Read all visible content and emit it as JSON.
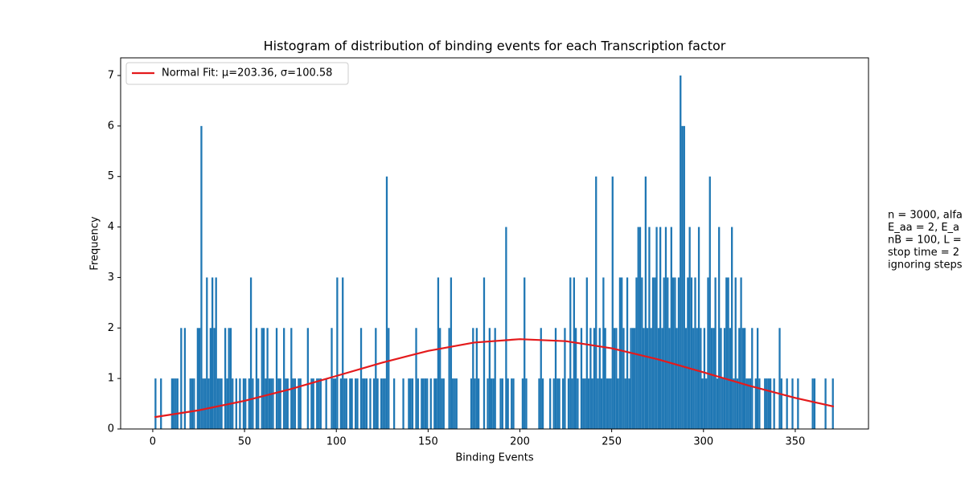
{
  "chart_data": {
    "type": "histogram",
    "title": "Histogram of distribution of binding events for each Transcription factor",
    "x_label": "Binding Events",
    "y_label": "Frequency",
    "color": "#1f77b4",
    "bins": [
      1,
      2,
      3,
      4,
      5,
      6,
      7,
      8,
      9,
      10,
      11,
      12,
      13,
      14,
      15,
      16,
      17,
      18,
      19,
      20,
      21,
      22,
      23,
      24,
      25,
      26,
      27,
      28,
      29,
      30,
      31,
      32,
      33,
      34,
      35,
      36,
      37,
      38,
      39,
      40,
      41,
      42,
      43,
      44,
      45,
      46,
      47,
      48,
      49,
      50,
      51,
      52,
      53,
      54,
      55,
      56,
      57,
      58,
      59,
      60,
      61,
      62,
      63,
      64,
      65,
      66,
      67,
      68,
      69,
      70,
      71,
      72,
      73,
      74,
      75,
      76,
      77,
      78,
      79,
      80,
      81,
      82,
      83,
      84,
      85,
      86,
      87,
      88,
      89,
      90,
      91,
      92,
      93,
      94,
      95,
      96,
      97,
      98,
      99,
      100,
      101,
      102,
      103,
      104,
      105,
      106,
      107,
      108,
      109,
      110,
      111,
      112,
      113,
      114,
      115,
      116,
      117,
      118,
      119,
      120,
      121,
      122,
      123,
      124,
      125,
      126,
      127,
      128,
      129,
      130,
      131,
      132,
      133,
      134,
      135,
      136,
      137,
      138,
      139,
      140,
      141,
      142,
      143,
      144,
      145,
      146,
      147,
      148,
      149,
      150,
      151,
      152,
      153,
      154,
      155,
      156,
      157,
      158,
      159,
      160,
      161,
      162,
      163,
      164,
      165,
      166,
      167,
      168,
      169,
      170,
      171,
      172,
      173,
      174,
      175,
      176,
      177,
      178,
      179,
      180,
      181,
      182,
      183,
      184,
      185,
      186,
      187,
      188,
      189,
      190,
      191,
      192,
      193,
      194,
      195,
      196,
      197,
      198,
      199,
      200,
      201,
      202,
      203,
      204,
      205,
      206,
      207,
      208,
      209,
      210,
      211,
      212,
      213,
      214,
      215,
      216,
      217,
      218,
      219,
      220,
      221,
      222,
      223,
      224,
      225,
      226,
      227,
      228,
      229,
      230,
      231,
      232,
      233,
      234,
      235,
      236,
      237,
      238,
      239,
      240,
      241,
      242,
      243,
      244,
      245,
      246,
      247,
      248,
      249,
      250,
      251,
      252,
      253,
      254,
      255,
      256,
      257,
      258,
      259,
      260,
      261,
      262,
      263,
      264,
      265,
      266,
      267,
      268,
      269,
      270,
      271,
      272,
      273,
      274,
      275,
      276,
      277,
      278,
      279,
      280,
      281,
      282,
      283,
      284,
      285,
      286,
      287,
      288,
      289,
      290,
      291,
      292,
      293,
      294,
      295,
      296,
      297,
      298,
      299,
      300,
      301,
      302,
      303,
      304,
      305,
      306,
      307,
      308,
      309,
      310,
      311,
      312,
      313,
      314,
      315,
      316,
      317,
      318,
      319,
      320,
      321,
      322,
      323,
      324,
      325,
      326,
      327,
      328,
      329,
      330,
      331,
      332,
      333,
      334,
      335,
      336,
      337,
      338,
      339,
      340,
      341,
      342,
      343,
      344,
      345,
      346,
      347,
      348,
      349,
      350,
      351,
      352,
      353,
      354,
      355,
      356,
      357,
      358,
      359,
      360,
      361,
      362,
      363,
      364,
      365,
      366,
      367,
      368,
      369,
      370,
      371
    ],
    "values": [
      1,
      0,
      0,
      1,
      0,
      0,
      0,
      0,
      0,
      1,
      1,
      1,
      1,
      0,
      2,
      0,
      2,
      0,
      0,
      1,
      1,
      1,
      0,
      2,
      2,
      6,
      1,
      1,
      3,
      1,
      2,
      3,
      2,
      3,
      1,
      1,
      1,
      0,
      2,
      1,
      2,
      2,
      1,
      0,
      1,
      0,
      1,
      0,
      1,
      1,
      0,
      1,
      3,
      1,
      0,
      2,
      1,
      0,
      2,
      2,
      1,
      2,
      1,
      1,
      1,
      0,
      2,
      1,
      1,
      0,
      2,
      1,
      1,
      0,
      2,
      1,
      1,
      0,
      1,
      1,
      0,
      0,
      0,
      2,
      0,
      1,
      1,
      0,
      1,
      1,
      1,
      0,
      0,
      1,
      0,
      0,
      2,
      1,
      1,
      3,
      0,
      1,
      3,
      1,
      1,
      0,
      1,
      1,
      0,
      1,
      1,
      0,
      2,
      1,
      1,
      1,
      0,
      1,
      0,
      1,
      2,
      1,
      0,
      1,
      1,
      1,
      5,
      2,
      0,
      0,
      1,
      0,
      0,
      0,
      0,
      1,
      0,
      0,
      1,
      1,
      1,
      0,
      2,
      1,
      0,
      1,
      1,
      1,
      1,
      0,
      1,
      0,
      1,
      1,
      3,
      2,
      1,
      1,
      0,
      0,
      2,
      3,
      1,
      1,
      1,
      0,
      0,
      0,
      0,
      0,
      0,
      0,
      1,
      2,
      1,
      2,
      1,
      0,
      0,
      3,
      0,
      1,
      2,
      1,
      1,
      2,
      0,
      0,
      1,
      1,
      0,
      4,
      1,
      0,
      1,
      1,
      0,
      0,
      0,
      0,
      1,
      3,
      1,
      0,
      0,
      0,
      0,
      0,
      0,
      1,
      2,
      1,
      0,
      0,
      0,
      1,
      0,
      1,
      2,
      1,
      1,
      0,
      1,
      2,
      0,
      1,
      3,
      1,
      3,
      2,
      1,
      0,
      2,
      1,
      1,
      3,
      1,
      2,
      1,
      2,
      5,
      1,
      2,
      1,
      3,
      2,
      1,
      1,
      1,
      5,
      2,
      2,
      1,
      3,
      3,
      2,
      1,
      3,
      1,
      2,
      2,
      2,
      3,
      4,
      4,
      3,
      2,
      5,
      2,
      4,
      2,
      3,
      3,
      4,
      2,
      4,
      2,
      3,
      4,
      3,
      2,
      4,
      3,
      3,
      2,
      3,
      7,
      6,
      6,
      2,
      3,
      4,
      3,
      2,
      3,
      2,
      4,
      2,
      1,
      2,
      1,
      3,
      5,
      2,
      2,
      3,
      1,
      4,
      2,
      1,
      2,
      3,
      3,
      2,
      4,
      1,
      3,
      1,
      2,
      3,
      2,
      2,
      1,
      1,
      1,
      2,
      0,
      1,
      2,
      1,
      0,
      0,
      1,
      1,
      1,
      1,
      0,
      1,
      0,
      0,
      2,
      1,
      0,
      0,
      1,
      0,
      0,
      1,
      0,
      0,
      1,
      0,
      0,
      0,
      0,
      0,
      0,
      0,
      1,
      1,
      0,
      0,
      0,
      0,
      0,
      1,
      0,
      0,
      0,
      1
    ],
    "fit": {
      "name": "Normal Fit: μ=203.36, σ=100.58",
      "color": "#e41a1c",
      "x": [
        1,
        25,
        50,
        75,
        100,
        125,
        150,
        175,
        200,
        225,
        250,
        275,
        300,
        325,
        350,
        371
      ],
      "values": [
        0.235,
        0.37,
        0.557,
        0.789,
        1.05,
        1.314,
        1.546,
        1.711,
        1.779,
        1.739,
        1.598,
        1.381,
        1.122,
        0.856,
        0.615,
        0.444
      ]
    },
    "xlim": [
      -17.5,
      389.9
    ],
    "ylim": [
      0,
      7.35
    ],
    "xticks": [
      0,
      50,
      100,
      150,
      200,
      250,
      300,
      350
    ],
    "yticks": [
      0,
      1,
      2,
      3,
      4,
      5,
      6,
      7
    ],
    "legend": "upper left",
    "annotation": [
      "n = 3000, alfa",
      "E_aa = 2, E_a",
      "nB = 100, L =",
      "stop time = 2",
      "ignoring steps"
    ]
  }
}
